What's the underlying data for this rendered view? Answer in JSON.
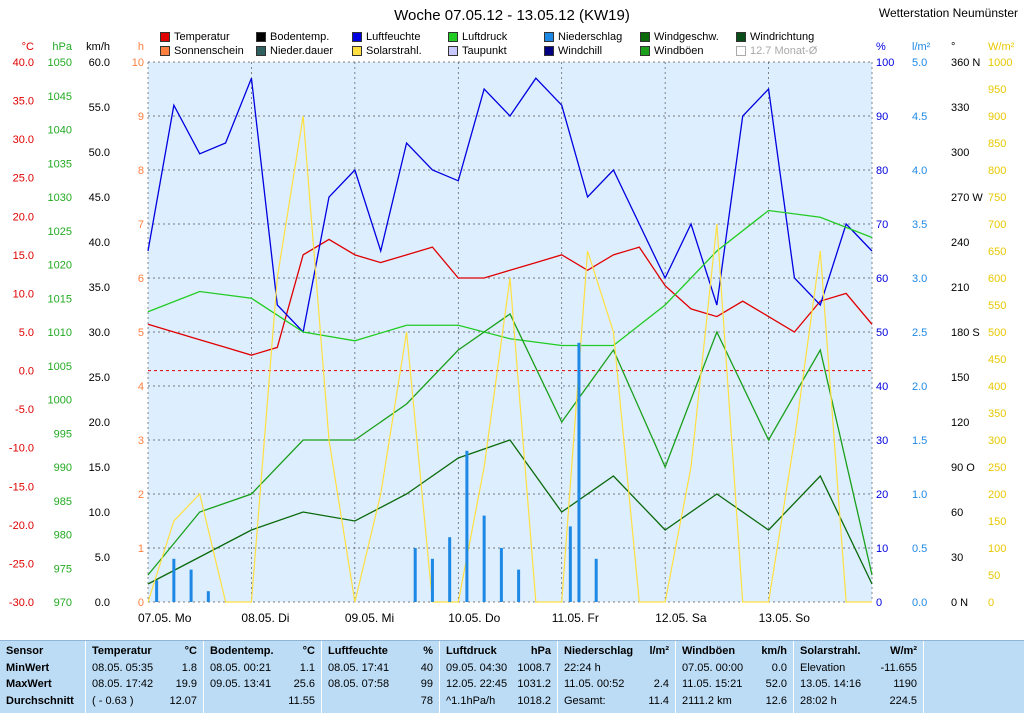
{
  "title": "Woche 07.05.12 - 13.05.12 (KW19)",
  "station": "Wetterstation Neumünster",
  "legend": [
    {
      "label": "Temperatur",
      "color": "#e00000"
    },
    {
      "label": "Bodentemp.",
      "color": "#000000"
    },
    {
      "label": "Luftfeuchte",
      "color": "#0000e0"
    },
    {
      "label": "Luftdruck",
      "color": "#22cc22"
    },
    {
      "label": "Niederschlag",
      "color": "#1e88e5"
    },
    {
      "label": "Windgeschw.",
      "color": "#0a6a0a"
    },
    {
      "label": "Windrichtung",
      "color": "#0b4d16"
    },
    {
      "label": "Sonnenschein",
      "color": "#ff7f3f"
    },
    {
      "label": "Nieder.dauer",
      "color": "#2f5f5f"
    },
    {
      "label": "Solarstrahl.",
      "color": "#ffe040"
    },
    {
      "label": "Taupunkt",
      "color": "#c8c8ff"
    },
    {
      "label": "Windchill",
      "color": "#000080"
    },
    {
      "label": "Windböen",
      "color": "#1aa01a"
    },
    {
      "label": "12.7 Monat-Ø",
      "color": "#ffffff",
      "dim": true
    }
  ],
  "axes": {
    "temp": {
      "unit": "°C",
      "color": "#e00000",
      "ticks": [
        "40.0",
        "35.0",
        "30.0",
        "25.0",
        "20.0",
        "15.0",
        "10.0",
        "5.0",
        "0.0",
        "-5.0",
        "-10.0",
        "-15.0",
        "-20.0",
        "-25.0",
        "-30.0"
      ]
    },
    "pressure": {
      "unit": "hPa",
      "color": "#22aa22",
      "ticks": [
        "1050",
        "1045",
        "1040",
        "1035",
        "1030",
        "1025",
        "1020",
        "1015",
        "1010",
        "1005",
        "1000",
        "995",
        "990",
        "985",
        "980",
        "975",
        "970"
      ]
    },
    "wind": {
      "unit": "km/h",
      "color": "#000000",
      "ticks": [
        "60.0",
        "55.0",
        "50.0",
        "45.0",
        "40.0",
        "35.0",
        "30.0",
        "25.0",
        "20.0",
        "15.0",
        "10.0",
        "5.0",
        "0.0"
      ]
    },
    "hours": {
      "unit": "h",
      "color": "#ff7f3f",
      "ticks": [
        "10",
        "9",
        "8",
        "7",
        "6",
        "5",
        "4",
        "3",
        "2",
        "1",
        "0"
      ]
    },
    "humidity": {
      "unit": "%",
      "color": "#0000e0",
      "ticks": [
        "100",
        "90",
        "80",
        "70",
        "60",
        "50",
        "40",
        "30",
        "20",
        "10",
        "0"
      ]
    },
    "rain": {
      "unit": "l/m²",
      "color": "#1e88e5",
      "ticks": [
        "5.0",
        "4.5",
        "4.0",
        "3.5",
        "3.0",
        "2.5",
        "2.0",
        "1.5",
        "1.0",
        "0.5",
        "0.0"
      ]
    },
    "direction": {
      "unit": "°",
      "color": "#000000",
      "ticks": [
        "360 N",
        "330",
        "300",
        "270 W",
        "240",
        "210",
        "180 S",
        "150",
        "120",
        "90  O",
        "60",
        "30",
        "0    N"
      ]
    },
    "solar": {
      "unit": "W/m²",
      "color": "#e8c800",
      "ticks": [
        "1000",
        "950",
        "900",
        "850",
        "800",
        "750",
        "700",
        "650",
        "600",
        "550",
        "500",
        "450",
        "400",
        "350",
        "300",
        "250",
        "200",
        "150",
        "100",
        "50",
        "0"
      ]
    }
  },
  "days": [
    "07.05.  Mo",
    "08.05.  Di",
    "09.05.  Mi",
    "10.05.  Do",
    "11.05.  Fr",
    "12.05.  Sa",
    "13.05.  So"
  ],
  "chart_data": {
    "type": "line",
    "title": "Woche 07.05.12 - 13.05.12 (KW19)",
    "x_unit": "hours since 07.05. 00:00",
    "series": [
      {
        "name": "Temperatur",
        "unit": "°C",
        "x": [
          0,
          6,
          12,
          18,
          24,
          30,
          36,
          42,
          48,
          54,
          60,
          66,
          72,
          78,
          84,
          90,
          96,
          102,
          108,
          114,
          120,
          126,
          132,
          138,
          144,
          150,
          156,
          162,
          168
        ],
        "values": [
          6,
          5,
          4,
          3,
          2,
          3,
          15,
          17,
          15,
          14,
          15,
          16,
          12,
          12,
          13,
          14,
          15,
          13,
          15,
          16,
          11,
          8,
          7,
          9,
          7,
          5,
          9,
          10,
          6
        ]
      },
      {
        "name": "Luftfeuchte",
        "unit": "%",
        "x": [
          0,
          6,
          12,
          18,
          24,
          30,
          36,
          42,
          48,
          54,
          60,
          66,
          72,
          78,
          84,
          90,
          96,
          102,
          108,
          114,
          120,
          126,
          132,
          138,
          144,
          150,
          156,
          162,
          168
        ],
        "values": [
          65,
          92,
          83,
          85,
          97,
          55,
          50,
          75,
          80,
          65,
          85,
          80,
          78,
          95,
          90,
          97,
          92,
          75,
          80,
          70,
          60,
          70,
          55,
          90,
          95,
          60,
          55,
          70,
          65
        ]
      },
      {
        "name": "Luftdruck",
        "unit": "hPa",
        "x": [
          0,
          12,
          24,
          36,
          48,
          60,
          72,
          84,
          96,
          108,
          120,
          132,
          144,
          156,
          168
        ],
        "values": [
          1013,
          1016,
          1015,
          1010,
          1008.7,
          1011,
          1011,
          1009,
          1008,
          1008,
          1014,
          1022,
          1028,
          1027,
          1024
        ]
      },
      {
        "name": "Windgeschw.",
        "unit": "km/h",
        "x": [
          0,
          12,
          24,
          36,
          48,
          60,
          72,
          84,
          96,
          108,
          120,
          132,
          144,
          156,
          168
        ],
        "values": [
          2,
          5,
          8,
          10,
          9,
          12,
          16,
          18,
          10,
          14,
          8,
          12,
          8,
          14,
          2
        ]
      },
      {
        "name": "Windböen",
        "unit": "km/h",
        "x": [
          0,
          12,
          24,
          36,
          48,
          60,
          72,
          84,
          96,
          108,
          120,
          132,
          144,
          156,
          168
        ],
        "values": [
          3,
          10,
          12,
          18,
          18,
          22,
          28,
          32,
          20,
          28,
          15,
          30,
          18,
          28,
          3
        ]
      },
      {
        "name": "Solarstrahl.",
        "unit": "W/m²",
        "x": [
          0,
          6,
          12,
          18,
          24,
          30,
          36,
          42,
          48,
          54,
          60,
          66,
          72,
          78,
          84,
          90,
          96,
          102,
          108,
          114,
          120,
          126,
          132,
          138,
          144,
          150,
          156,
          162,
          168
        ],
        "values": [
          0,
          150,
          200,
          0,
          0,
          600,
          900,
          300,
          0,
          200,
          500,
          0,
          0,
          250,
          600,
          0,
          0,
          650,
          500,
          0,
          0,
          250,
          700,
          0,
          0,
          300,
          650,
          0,
          0
        ]
      },
      {
        "name": "Niederschlag",
        "unit": "l/m²",
        "x": [
          2,
          6,
          10,
          14,
          62,
          66,
          70,
          74,
          78,
          82,
          86,
          98,
          100,
          104
        ],
        "values": [
          0.2,
          0.4,
          0.3,
          0.1,
          0.5,
          0.4,
          0.6,
          1.4,
          0.8,
          0.5,
          0.3,
          0.7,
          2.4,
          0.4
        ]
      }
    ]
  },
  "table": [
    {
      "header": "Sensor",
      "rows": [
        "MinWert",
        "MaxWert",
        "Durchschnitt"
      ]
    },
    {
      "header": "Temperatur",
      "unit": "°C",
      "rows": [
        [
          "08.05.  05:35",
          "1.8"
        ],
        [
          "08.05.  17:42",
          "19.9"
        ],
        [
          "( - 0.63 )",
          "12.07"
        ]
      ]
    },
    {
      "header": "Bodentemp.",
      "unit": "°C",
      "rows": [
        [
          "08.05.  00:21",
          "1.1"
        ],
        [
          "09.05.  13:41",
          "25.6"
        ],
        [
          "",
          "11.55"
        ]
      ]
    },
    {
      "header": "Luftfeuchte",
      "unit": "%",
      "rows": [
        [
          "08.05.  17:41",
          "40"
        ],
        [
          "08.05.  07:58",
          "99"
        ],
        [
          "",
          "78"
        ]
      ]
    },
    {
      "header": "Luftdruck",
      "unit": "hPa",
      "rows": [
        [
          "09.05.  04:30",
          "1008.7"
        ],
        [
          "12.05.  22:45",
          "1031.2"
        ],
        [
          "^1.1hPa/h",
          "1018.2"
        ]
      ]
    },
    {
      "header": "Niederschlag",
      "unit": "l/m²",
      "rows": [
        [
          "22:24 h",
          ""
        ],
        [
          "11.05.  00:52",
          "2.4"
        ],
        [
          "Gesamt:",
          "11.4"
        ]
      ]
    },
    {
      "header": "Windböen",
      "unit": "km/h",
      "rows": [
        [
          "07.05.  00:00",
          "0.0"
        ],
        [
          "11.05.  15:21",
          "52.0"
        ],
        [
          "2111.2 km",
          "12.6"
        ]
      ]
    },
    {
      "header": "Solarstrahl.",
      "unit": "W/m²",
      "rows": [
        [
          "Elevation",
          "-11.655"
        ],
        [
          "13.05.  14:16",
          "1190"
        ],
        [
          "28:02 h",
          "224.5"
        ]
      ]
    }
  ]
}
